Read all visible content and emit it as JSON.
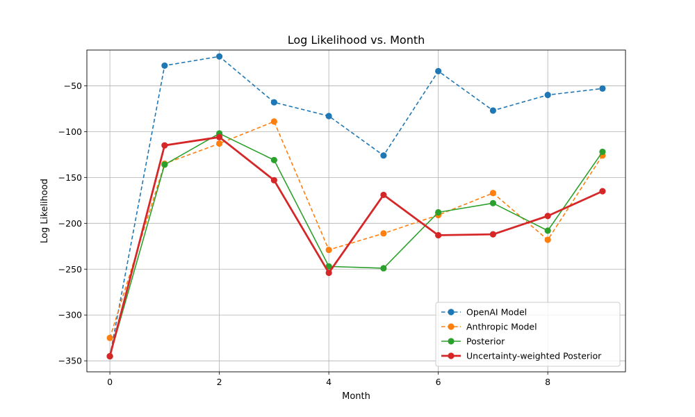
{
  "chart_data": {
    "type": "line",
    "title": "Log Likelihood vs. Month",
    "xlabel": "Month",
    "ylabel": "Log Likelihood",
    "xlim": [
      -0.42,
      9.42
    ],
    "ylim": [
      -362,
      -11
    ],
    "xticks": [
      0,
      2,
      4,
      6,
      8
    ],
    "yticks": [
      -350,
      -300,
      -250,
      -200,
      -150,
      -100,
      -50
    ],
    "grid": true,
    "legend_position": "lower-right",
    "x": [
      0,
      1,
      2,
      3,
      4,
      5,
      6,
      7,
      8,
      9
    ],
    "series": [
      {
        "name": "OpenAI Model",
        "color": "#1f77b4",
        "style": "dashed",
        "values": [
          -345,
          -28,
          -18,
          -68,
          -83,
          -126,
          -34,
          -77,
          -60,
          -53
        ]
      },
      {
        "name": "Anthropic Model",
        "color": "#ff7f0e",
        "style": "dashed",
        "values": [
          -325,
          -135,
          -113,
          -89,
          -229,
          -211,
          -191,
          -167,
          -218,
          -126
        ]
      },
      {
        "name": "Posterior",
        "color": "#2ca02c",
        "style": "solid",
        "values": [
          -345,
          -136,
          -102,
          -131,
          -247,
          -249,
          -188,
          -178,
          -208,
          -122
        ]
      },
      {
        "name": "Uncertainty-weighted Posterior",
        "color": "#d62728",
        "style": "solid-bold",
        "values": [
          -345,
          -115,
          -106,
          -153,
          -254,
          -169,
          -213,
          -212,
          -192,
          -165
        ]
      }
    ]
  }
}
